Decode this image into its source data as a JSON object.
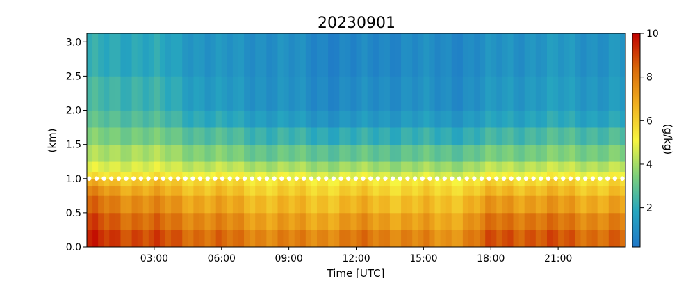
{
  "chart_data": {
    "type": "heatmap",
    "title": "20230901",
    "xlabel": "Time [UTC]",
    "ylabel": "(km)",
    "colorbar_label": "(g/kg)",
    "x_unit": "hours UTC",
    "xlim": [
      0,
      24
    ],
    "ylim": [
      0,
      3.125
    ],
    "x_ticks": [
      3,
      6,
      9,
      12,
      15,
      18,
      21
    ],
    "x_tick_labels": [
      "03:00",
      "06:00",
      "09:00",
      "12:00",
      "15:00",
      "18:00",
      "21:00"
    ],
    "y_ticks": [
      0,
      0.5,
      1.0,
      1.5,
      2.0,
      2.5,
      3.0
    ],
    "y_tick_labels": [
      "0.0",
      "0.5",
      "1.0",
      "1.5",
      "2.0",
      "2.5",
      "3.0"
    ],
    "colorbar_range": [
      0.2,
      10
    ],
    "colorbar_ticks": [
      2,
      4,
      6,
      8,
      10
    ],
    "colorbar_tick_labels": [
      "2",
      "4",
      "6",
      "8",
      "10"
    ],
    "colormap": [
      "#1f78c8",
      "#26a6bf",
      "#7ed07a",
      "#f7f53f",
      "#f0b01f",
      "#d96a0a",
      "#c00000"
    ],
    "heights_km": [
      0.0,
      0.25,
      0.5,
      0.75,
      0.9,
      1.0,
      1.1,
      1.25,
      1.5,
      1.75,
      2.0,
      2.5,
      3.125
    ],
    "profile_start_hours": [
      0.0,
      2.0,
      4.0,
      6.0,
      8.0,
      10.0,
      12.0,
      14.0,
      16.0,
      18.0,
      20.0,
      22.0
    ],
    "mixing_ratio_profiles": [
      [
        9.3,
        8.8,
        8.2,
        7.5,
        6.6,
        5.4,
        4.6,
        3.9,
        3.3,
        2.7,
        2.3,
        1.9,
        1.8
      ],
      [
        9.0,
        8.4,
        7.7,
        7.0,
        6.3,
        5.6,
        4.8,
        4.2,
        3.4,
        2.8,
        2.4,
        2.0,
        1.9
      ],
      [
        8.6,
        8.0,
        7.3,
        6.6,
        6.1,
        5.3,
        4.5,
        3.8,
        3.0,
        2.3,
        1.9,
        1.6,
        1.5
      ],
      [
        8.2,
        7.6,
        6.9,
        6.3,
        5.8,
        5.1,
        4.3,
        3.4,
        2.6,
        1.8,
        1.3,
        1.1,
        1.1
      ],
      [
        7.8,
        7.2,
        6.6,
        6.0,
        5.6,
        5.0,
        4.1,
        3.1,
        2.3,
        1.6,
        1.2,
        1.1,
        1.0
      ],
      [
        7.7,
        7.0,
        6.4,
        5.9,
        5.5,
        4.8,
        3.9,
        3.0,
        2.1,
        1.3,
        0.9,
        0.8,
        0.8
      ],
      [
        8.0,
        7.3,
        6.6,
        6.0,
        5.5,
        4.8,
        3.9,
        2.9,
        2.0,
        1.2,
        0.8,
        0.6,
        0.6
      ],
      [
        7.9,
        7.2,
        6.5,
        5.9,
        5.5,
        4.7,
        3.9,
        3.0,
        2.2,
        1.5,
        1.1,
        0.9,
        0.9
      ],
      [
        7.3,
        6.8,
        6.3,
        5.8,
        5.4,
        4.6,
        3.8,
        2.9,
        2.0,
        1.3,
        0.9,
        0.8,
        0.8
      ],
      [
        8.6,
        8.0,
        7.2,
        6.4,
        5.8,
        5.0,
        4.2,
        3.2,
        2.3,
        1.6,
        1.2,
        1.0,
        1.0
      ],
      [
        8.8,
        8.2,
        7.3,
        6.6,
        5.9,
        5.2,
        4.4,
        3.4,
        2.6,
        1.9,
        1.5,
        1.3,
        1.3
      ],
      [
        8.4,
        7.8,
        7.0,
        6.3,
        5.8,
        5.1,
        4.3,
        3.4,
        2.6,
        1.8,
        1.4,
        1.2,
        1.2
      ]
    ],
    "overlay_marker_height_km": 1.0,
    "overlay_marker_color": "#ffffff"
  }
}
